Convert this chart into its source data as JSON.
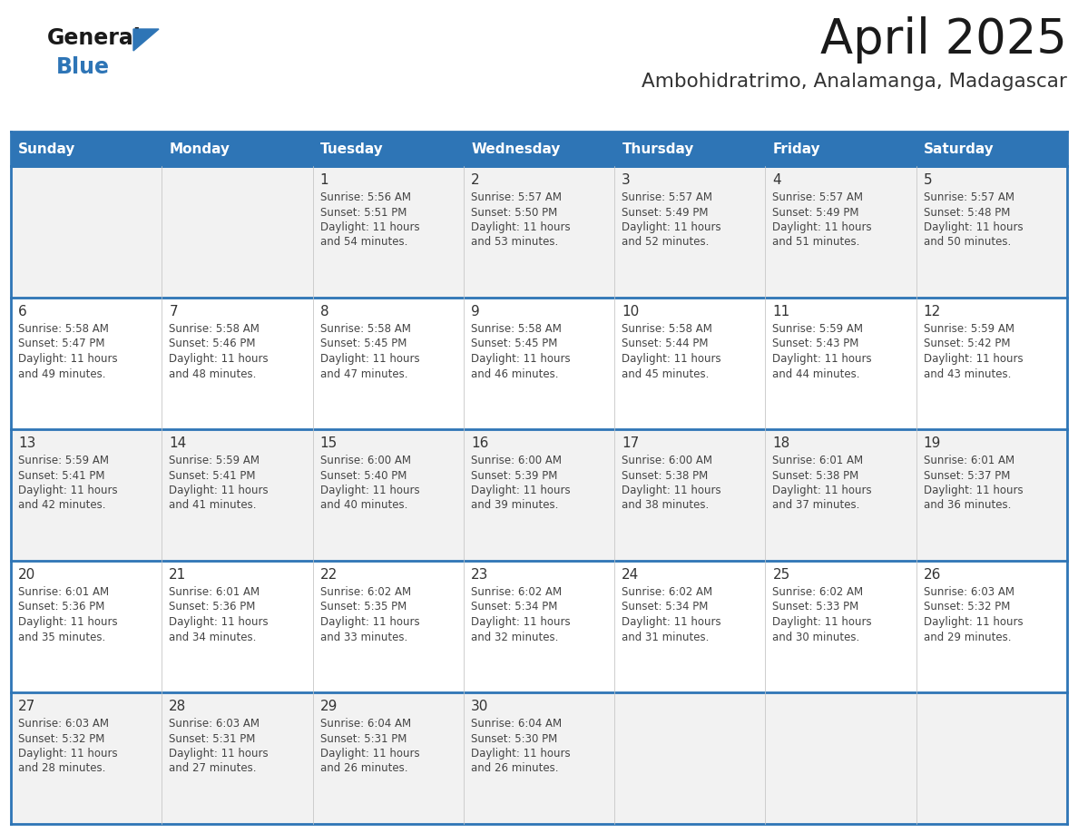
{
  "title": "April 2025",
  "subtitle": "Ambohidratrimo, Analamanga, Madagascar",
  "days_of_week": [
    "Sunday",
    "Monday",
    "Tuesday",
    "Wednesday",
    "Thursday",
    "Friday",
    "Saturday"
  ],
  "header_bg": "#2E75B6",
  "header_text_color": "#FFFFFF",
  "row_bg_odd": "#F2F2F2",
  "row_bg_even": "#FFFFFF",
  "border_color": "#2E75B6",
  "cell_border_color": "#CCCCCC",
  "title_color": "#1a1a1a",
  "subtitle_color": "#333333",
  "day_num_color": "#333333",
  "text_color": "#444444",
  "logo_text_color": "#1a1a1a",
  "logo_blue_color": "#2E75B6",
  "calendar": [
    [
      {
        "day": "",
        "info": ""
      },
      {
        "day": "",
        "info": ""
      },
      {
        "day": "1",
        "info": "Sunrise: 5:56 AM\nSunset: 5:51 PM\nDaylight: 11 hours\nand 54 minutes."
      },
      {
        "day": "2",
        "info": "Sunrise: 5:57 AM\nSunset: 5:50 PM\nDaylight: 11 hours\nand 53 minutes."
      },
      {
        "day": "3",
        "info": "Sunrise: 5:57 AM\nSunset: 5:49 PM\nDaylight: 11 hours\nand 52 minutes."
      },
      {
        "day": "4",
        "info": "Sunrise: 5:57 AM\nSunset: 5:49 PM\nDaylight: 11 hours\nand 51 minutes."
      },
      {
        "day": "5",
        "info": "Sunrise: 5:57 AM\nSunset: 5:48 PM\nDaylight: 11 hours\nand 50 minutes."
      }
    ],
    [
      {
        "day": "6",
        "info": "Sunrise: 5:58 AM\nSunset: 5:47 PM\nDaylight: 11 hours\nand 49 minutes."
      },
      {
        "day": "7",
        "info": "Sunrise: 5:58 AM\nSunset: 5:46 PM\nDaylight: 11 hours\nand 48 minutes."
      },
      {
        "day": "8",
        "info": "Sunrise: 5:58 AM\nSunset: 5:45 PM\nDaylight: 11 hours\nand 47 minutes."
      },
      {
        "day": "9",
        "info": "Sunrise: 5:58 AM\nSunset: 5:45 PM\nDaylight: 11 hours\nand 46 minutes."
      },
      {
        "day": "10",
        "info": "Sunrise: 5:58 AM\nSunset: 5:44 PM\nDaylight: 11 hours\nand 45 minutes."
      },
      {
        "day": "11",
        "info": "Sunrise: 5:59 AM\nSunset: 5:43 PM\nDaylight: 11 hours\nand 44 minutes."
      },
      {
        "day": "12",
        "info": "Sunrise: 5:59 AM\nSunset: 5:42 PM\nDaylight: 11 hours\nand 43 minutes."
      }
    ],
    [
      {
        "day": "13",
        "info": "Sunrise: 5:59 AM\nSunset: 5:41 PM\nDaylight: 11 hours\nand 42 minutes."
      },
      {
        "day": "14",
        "info": "Sunrise: 5:59 AM\nSunset: 5:41 PM\nDaylight: 11 hours\nand 41 minutes."
      },
      {
        "day": "15",
        "info": "Sunrise: 6:00 AM\nSunset: 5:40 PM\nDaylight: 11 hours\nand 40 minutes."
      },
      {
        "day": "16",
        "info": "Sunrise: 6:00 AM\nSunset: 5:39 PM\nDaylight: 11 hours\nand 39 minutes."
      },
      {
        "day": "17",
        "info": "Sunrise: 6:00 AM\nSunset: 5:38 PM\nDaylight: 11 hours\nand 38 minutes."
      },
      {
        "day": "18",
        "info": "Sunrise: 6:01 AM\nSunset: 5:38 PM\nDaylight: 11 hours\nand 37 minutes."
      },
      {
        "day": "19",
        "info": "Sunrise: 6:01 AM\nSunset: 5:37 PM\nDaylight: 11 hours\nand 36 minutes."
      }
    ],
    [
      {
        "day": "20",
        "info": "Sunrise: 6:01 AM\nSunset: 5:36 PM\nDaylight: 11 hours\nand 35 minutes."
      },
      {
        "day": "21",
        "info": "Sunrise: 6:01 AM\nSunset: 5:36 PM\nDaylight: 11 hours\nand 34 minutes."
      },
      {
        "day": "22",
        "info": "Sunrise: 6:02 AM\nSunset: 5:35 PM\nDaylight: 11 hours\nand 33 minutes."
      },
      {
        "day": "23",
        "info": "Sunrise: 6:02 AM\nSunset: 5:34 PM\nDaylight: 11 hours\nand 32 minutes."
      },
      {
        "day": "24",
        "info": "Sunrise: 6:02 AM\nSunset: 5:34 PM\nDaylight: 11 hours\nand 31 minutes."
      },
      {
        "day": "25",
        "info": "Sunrise: 6:02 AM\nSunset: 5:33 PM\nDaylight: 11 hours\nand 30 minutes."
      },
      {
        "day": "26",
        "info": "Sunrise: 6:03 AM\nSunset: 5:32 PM\nDaylight: 11 hours\nand 29 minutes."
      }
    ],
    [
      {
        "day": "27",
        "info": "Sunrise: 6:03 AM\nSunset: 5:32 PM\nDaylight: 11 hours\nand 28 minutes."
      },
      {
        "day": "28",
        "info": "Sunrise: 6:03 AM\nSunset: 5:31 PM\nDaylight: 11 hours\nand 27 minutes."
      },
      {
        "day": "29",
        "info": "Sunrise: 6:04 AM\nSunset: 5:31 PM\nDaylight: 11 hours\nand 26 minutes."
      },
      {
        "day": "30",
        "info": "Sunrise: 6:04 AM\nSunset: 5:30 PM\nDaylight: 11 hours\nand 26 minutes."
      },
      {
        "day": "",
        "info": ""
      },
      {
        "day": "",
        "info": ""
      },
      {
        "day": "",
        "info": ""
      }
    ]
  ]
}
